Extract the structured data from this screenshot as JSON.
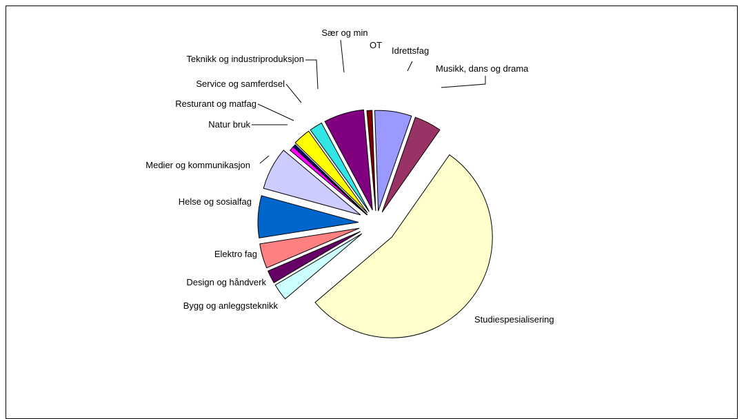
{
  "chart_data": {
    "type": "pie",
    "exploded": true,
    "slices": [
      {
        "label": "Studiespesialisering",
        "value": 52.0,
        "color": "#FFFFCC"
      },
      {
        "label": "Bygg og anleggsteknikk",
        "value": 2.6,
        "color": "#CCFFFF"
      },
      {
        "label": "Design og håndverk",
        "value": 2.0,
        "color": "#660066"
      },
      {
        "label": "Elektro fag",
        "value": 3.8,
        "color": "#FF8080"
      },
      {
        "label": "Helse og sosialfag",
        "value": 6.5,
        "color": "#0066CC"
      },
      {
        "label": "Medier og kommunikasjon",
        "value": 6.6,
        "color": "#CCCCFF"
      },
      {
        "label": "Natur bruk",
        "value": 0.7,
        "color": "#FF00FF"
      },
      {
        "label": "Resturant og matfag",
        "value": 0.4,
        "color": "#000080"
      },
      {
        "label": "Service og samferdsel",
        "value": 2.7,
        "color": "#FFFF00"
      },
      {
        "label": "Teknikk og industriproduksjon",
        "value": 2.0,
        "color": "#33E6E6"
      },
      {
        "label": "Sær og min",
        "value": 6.2,
        "color": "#800080"
      },
      {
        "label": "OT",
        "value": 0.8,
        "color": "#800000"
      },
      {
        "label": "Idrettsfag",
        "value": 5.7,
        "color": "#9999FF"
      },
      {
        "label": "Musikk, dans og drama",
        "value": 4.2,
        "color": "#993366"
      }
    ]
  }
}
